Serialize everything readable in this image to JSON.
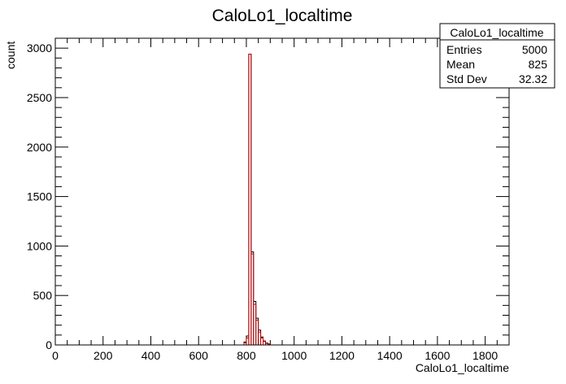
{
  "chart_data": {
    "type": "histogram",
    "title": "CaloLo1_localtime",
    "xlabel": "CaloLo1_localtime",
    "ylabel": "count",
    "xlim": [
      0,
      1900
    ],
    "ylim": [
      0,
      3100
    ],
    "x_ticks": [
      "0",
      "200",
      "400",
      "600",
      "800",
      "1000",
      "1200",
      "1400",
      "1600",
      "1800"
    ],
    "y_ticks": [
      "0",
      "500",
      "1000",
      "1500",
      "2000",
      "2500",
      "3000"
    ],
    "bin_width": 10,
    "series": [
      {
        "name": "",
        "color": "#000000",
        "bins": [
          [
            790,
            30
          ],
          [
            800,
            90
          ],
          [
            810,
            2940
          ],
          [
            820,
            940
          ],
          [
            830,
            440
          ],
          [
            840,
            270
          ],
          [
            850,
            150
          ],
          [
            860,
            80
          ],
          [
            870,
            40
          ],
          [
            880,
            20
          ],
          [
            890,
            10
          ]
        ]
      },
      {
        "name": "",
        "color": "#cc0000",
        "bins": [
          [
            790,
            20
          ],
          [
            800,
            70
          ],
          [
            810,
            2940
          ],
          [
            820,
            920
          ],
          [
            830,
            410
          ],
          [
            840,
            250
          ],
          [
            850,
            130
          ],
          [
            860,
            70
          ],
          [
            870,
            35
          ],
          [
            880,
            15
          ],
          [
            890,
            8
          ]
        ]
      }
    ],
    "stats": {
      "name": "CaloLo1_localtime",
      "rows": [
        {
          "label": "Entries",
          "value": "5000"
        },
        {
          "label": "Mean",
          "value": "825"
        },
        {
          "label": "Std Dev",
          "value": "32.32"
        }
      ]
    }
  }
}
